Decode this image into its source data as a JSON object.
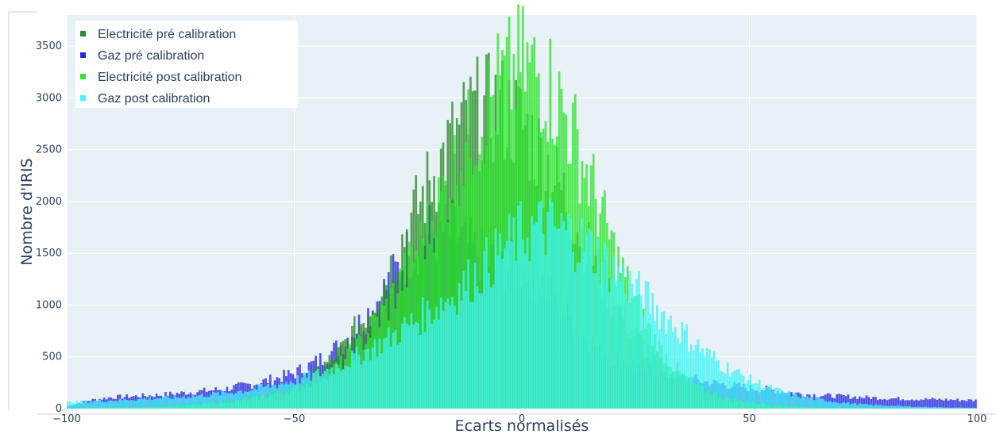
{
  "chart_data": {
    "type": "bar",
    "barmode": "overlay",
    "xlabel": "Ecarts normalisés",
    "ylabel": "Nombre d'IRIS",
    "xlim": [
      -100,
      100
    ],
    "ylim": [
      0,
      3800
    ],
    "xticks": [
      -100,
      -50,
      0,
      50,
      100
    ],
    "yticks": [
      0,
      500,
      1000,
      1500,
      2000,
      2500,
      3000,
      3500
    ],
    "grid": true,
    "legend_position": "top-left",
    "plot_bgcolor": "#e8f1f6",
    "series": [
      {
        "name": "Gaz pré calibration",
        "color": "#2727e6",
        "x": [
          -100,
          -95,
          -90,
          -85,
          -80,
          -75,
          -70,
          -65,
          -60,
          -55,
          -50,
          -45,
          -40,
          -35,
          -30,
          -25,
          -20,
          -15,
          -10,
          -5,
          0,
          5,
          10,
          15,
          20,
          25,
          30,
          35,
          40,
          45,
          50,
          55,
          60,
          65,
          70,
          75,
          80,
          85,
          90,
          95,
          100
        ],
        "values": [
          20,
          80,
          110,
          120,
          130,
          150,
          170,
          190,
          230,
          280,
          340,
          450,
          600,
          850,
          1150,
          1500,
          1700,
          1700,
          1500,
          1400,
          1350,
          1200,
          900,
          650,
          500,
          420,
          350,
          300,
          260,
          230,
          200,
          180,
          150,
          130,
          120,
          110,
          100,
          95,
          90,
          85,
          80
        ]
      },
      {
        "name": "Electricité pré calibration",
        "color": "#2e8b2e",
        "x": [
          -100,
          -95,
          -90,
          -85,
          -80,
          -75,
          -70,
          -65,
          -60,
          -55,
          -50,
          -45,
          -40,
          -35,
          -30,
          -25,
          -20,
          -15,
          -10,
          -5,
          0,
          5,
          10,
          15,
          20,
          25,
          30,
          35,
          40,
          45,
          50,
          55,
          60,
          65,
          70,
          75,
          80,
          85,
          90,
          95,
          100
        ],
        "values": [
          5,
          10,
          15,
          20,
          30,
          40,
          60,
          80,
          110,
          150,
          220,
          350,
          550,
          850,
          1250,
          1750,
          2200,
          2600,
          2850,
          2900,
          2750,
          2400,
          2000,
          1500,
          1050,
          700,
          450,
          280,
          170,
          100,
          60,
          40,
          25,
          15,
          10,
          8,
          6,
          5,
          4,
          3,
          2
        ]
      },
      {
        "name": "Electricité post calibration",
        "color": "#2ee62e",
        "x": [
          -100,
          -95,
          -90,
          -85,
          -80,
          -75,
          -70,
          -65,
          -60,
          -55,
          -50,
          -45,
          -40,
          -35,
          -30,
          -25,
          -20,
          -15,
          -10,
          -5,
          0,
          5,
          10,
          15,
          20,
          25,
          30,
          35,
          40,
          45,
          50,
          55,
          60,
          65,
          70,
          75,
          80,
          85,
          90,
          95,
          100
        ],
        "values": [
          5,
          8,
          10,
          15,
          20,
          30,
          45,
          60,
          90,
          130,
          180,
          280,
          420,
          650,
          950,
          1350,
          1800,
          2300,
          2750,
          3100,
          3300,
          3200,
          2800,
          2200,
          1550,
          1000,
          600,
          330,
          180,
          100,
          60,
          35,
          20,
          12,
          8,
          6,
          5,
          4,
          3,
          2,
          2
        ]
      },
      {
        "name": "Gaz post calibration",
        "color": "#40f5f5",
        "x": [
          -100,
          -95,
          -90,
          -85,
          -80,
          -75,
          -70,
          -65,
          -60,
          -55,
          -50,
          -45,
          -40,
          -35,
          -30,
          -25,
          -20,
          -15,
          -10,
          -5,
          0,
          5,
          10,
          15,
          20,
          25,
          30,
          35,
          40,
          45,
          50,
          55,
          60,
          65,
          70,
          75,
          80,
          85,
          90,
          95,
          100
        ],
        "values": [
          60,
          70,
          80,
          90,
          100,
          110,
          130,
          150,
          180,
          220,
          270,
          330,
          420,
          530,
          650,
          800,
          950,
          1100,
          1300,
          1500,
          1700,
          1750,
          1700,
          1550,
          1350,
          1150,
          950,
          750,
          550,
          400,
          280,
          190,
          130,
          90,
          60,
          40,
          30,
          20,
          15,
          10,
          8
        ]
      }
    ],
    "legend_order": [
      "Electricité pré calibration",
      "Gaz pré calibration",
      "Electricité post calibration",
      "Gaz post calibration"
    ]
  }
}
